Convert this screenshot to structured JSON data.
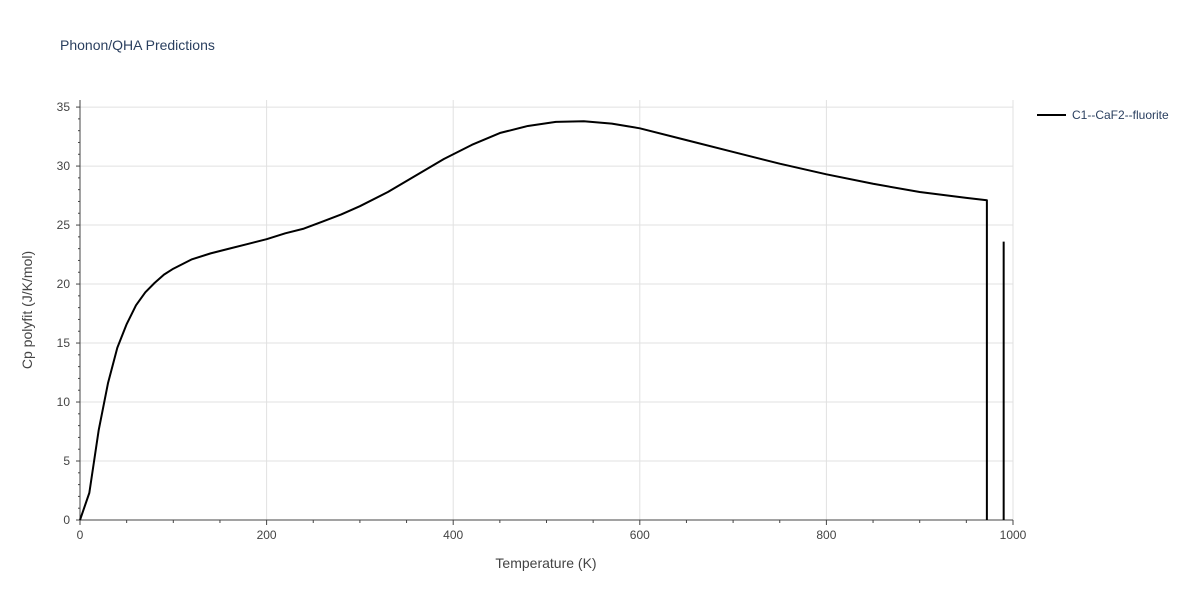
{
  "chart_data": {
    "type": "line",
    "title": "Phonon/QHA Predictions",
    "xlabel": "Temperature (K)",
    "ylabel": "Cp polyfit (J/K/mol)",
    "xlim": [
      0,
      1000
    ],
    "ylim": [
      0,
      35.6
    ],
    "x_ticks": [
      0,
      200,
      400,
      600,
      800,
      1000
    ],
    "y_ticks": [
      0,
      5,
      10,
      15,
      20,
      25,
      30,
      35
    ],
    "grid": true,
    "legend_position": "top-right",
    "line_color": "#000000",
    "series": [
      {
        "name": "C1--CaF2--fluorite",
        "segments": [
          {
            "x": [
              0,
              10,
              20,
              30,
              40,
              50,
              60,
              70,
              80,
              90,
              100,
              120,
              140,
              160,
              180,
              200,
              220,
              240,
              260,
              280,
              300,
              330,
              360,
              390,
              420,
              450,
              480,
              510,
              540,
              570,
              600,
              650,
              700,
              750,
              800,
              850,
              900,
              950,
              972,
              972
            ],
            "y": [
              0,
              2.3,
              7.6,
              11.6,
              14.6,
              16.6,
              18.2,
              19.3,
              20.1,
              20.8,
              21.3,
              22.1,
              22.6,
              23.0,
              23.4,
              23.8,
              24.3,
              24.7,
              25.3,
              25.9,
              26.6,
              27.8,
              29.2,
              30.6,
              31.8,
              32.8,
              33.4,
              33.75,
              33.8,
              33.6,
              33.2,
              32.2,
              31.2,
              30.2,
              29.3,
              28.5,
              27.8,
              27.3,
              27.1,
              0
            ]
          },
          {
            "x": [
              990,
              990
            ],
            "y": [
              0,
              23.6
            ]
          }
        ]
      }
    ]
  }
}
